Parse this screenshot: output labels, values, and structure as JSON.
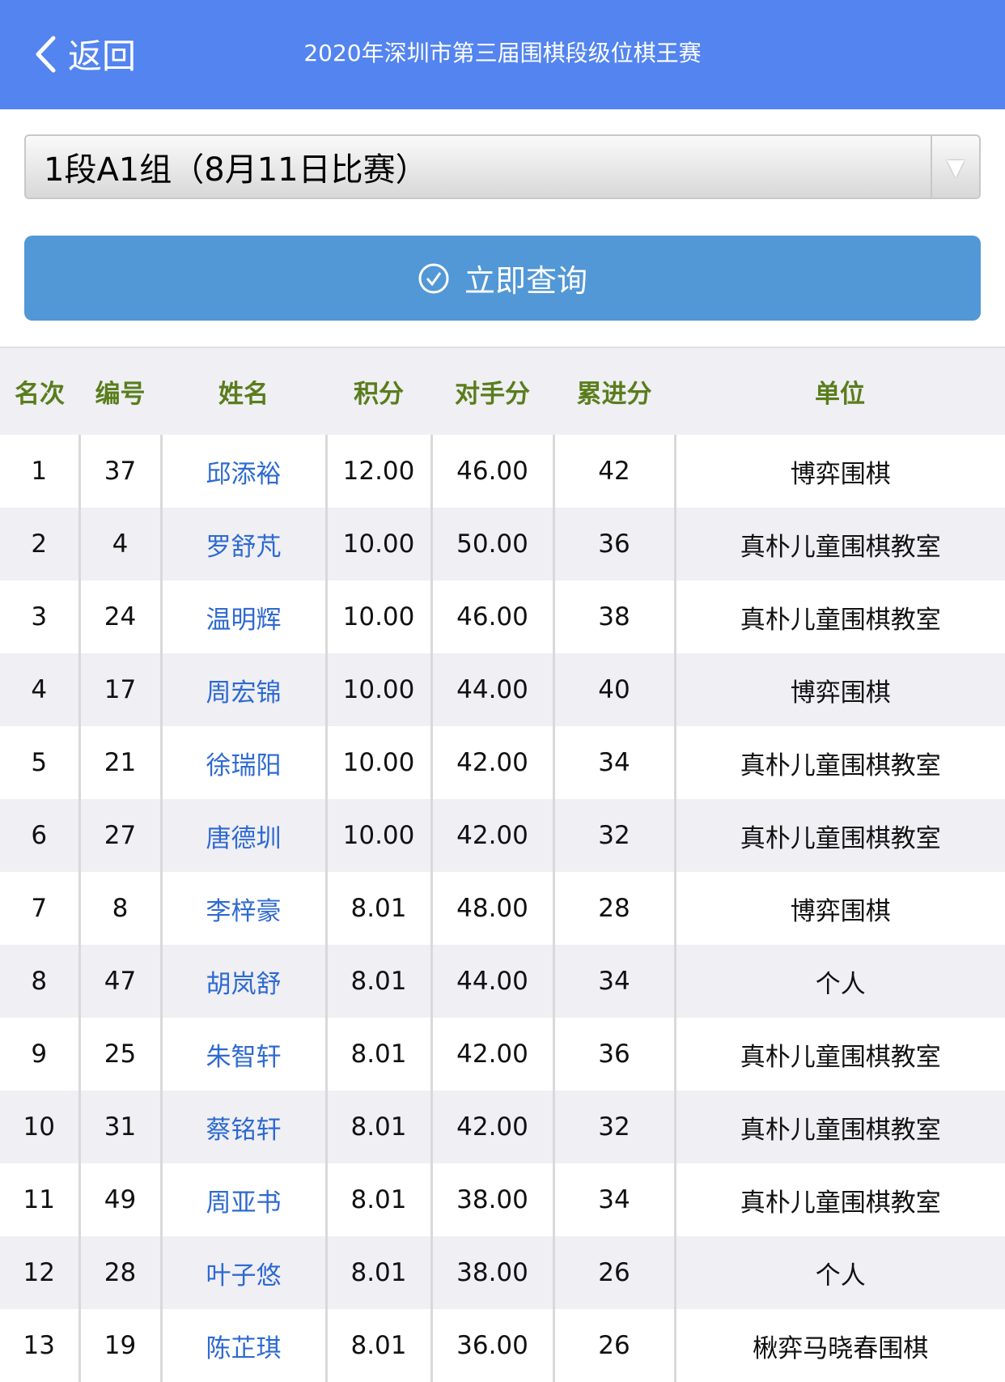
{
  "header": {
    "back_label": "返回",
    "title": "2020年深圳市第三届围棋段级位棋王赛",
    "bg_color": "#5384ef"
  },
  "group_select": {
    "value": "1段A1组（8月11日比赛）"
  },
  "query_button": {
    "label": "立即查询",
    "color": "#5297d6"
  },
  "table": {
    "columns": [
      "名次",
      "编号",
      "姓名",
      "积分",
      "对手分",
      "累进分",
      "单位"
    ],
    "rows": [
      [
        "1",
        "37",
        "邱添裕",
        "12.00",
        "46.00",
        "42",
        "博弈围棋"
      ],
      [
        "2",
        "4",
        "罗舒芃",
        "10.00",
        "50.00",
        "36",
        "真朴儿童围棋教室"
      ],
      [
        "3",
        "24",
        "温明辉",
        "10.00",
        "46.00",
        "38",
        "真朴儿童围棋教室"
      ],
      [
        "4",
        "17",
        "周宏锦",
        "10.00",
        "44.00",
        "40",
        "博弈围棋"
      ],
      [
        "5",
        "21",
        "徐瑞阳",
        "10.00",
        "42.00",
        "34",
        "真朴儿童围棋教室"
      ],
      [
        "6",
        "27",
        "唐德圳",
        "10.00",
        "42.00",
        "32",
        "真朴儿童围棋教室"
      ],
      [
        "7",
        "8",
        "李梓豪",
        "8.01",
        "48.00",
        "28",
        "博弈围棋"
      ],
      [
        "8",
        "47",
        "胡岚舒",
        "8.01",
        "44.00",
        "34",
        "个人"
      ],
      [
        "9",
        "25",
        "朱智轩",
        "8.01",
        "42.00",
        "36",
        "真朴儿童围棋教室"
      ],
      [
        "10",
        "31",
        "蔡铭轩",
        "8.01",
        "42.00",
        "32",
        "真朴儿童围棋教室"
      ],
      [
        "11",
        "49",
        "周亚书",
        "8.01",
        "38.00",
        "34",
        "真朴儿童围棋教室"
      ],
      [
        "12",
        "28",
        "叶子悠",
        "8.01",
        "38.00",
        "26",
        "个人"
      ],
      [
        "13",
        "19",
        "陈芷琪",
        "8.01",
        "36.00",
        "26",
        "楸弈马晓春围棋"
      ]
    ]
  }
}
